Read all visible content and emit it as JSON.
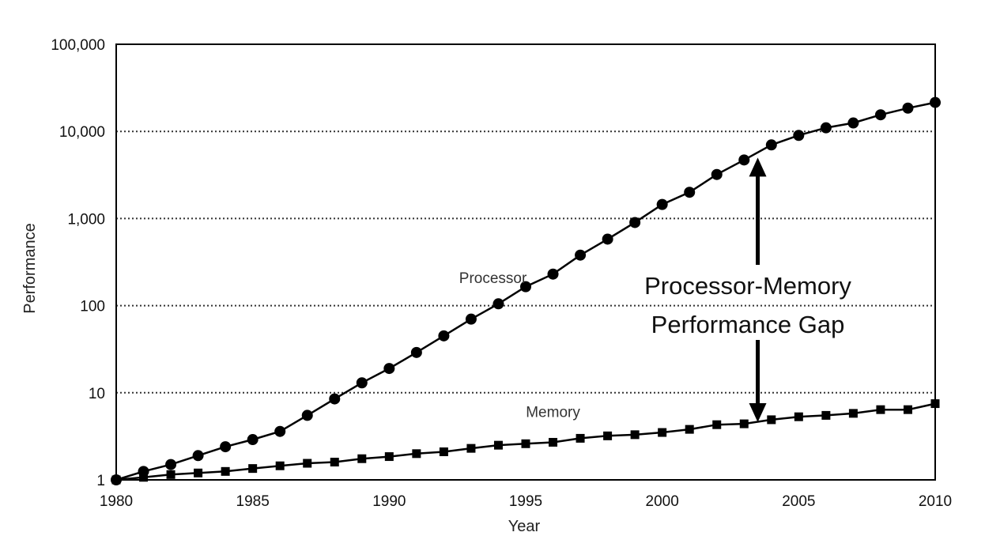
{
  "chart_data": {
    "type": "line",
    "y_scale": "log",
    "xlabel": "Year",
    "ylabel": "Performance",
    "xlim": [
      1980,
      2010
    ],
    "ylim": [
      1,
      100000
    ],
    "x_ticks": [
      "1980",
      "1985",
      "1990",
      "1995",
      "2000",
      "2005",
      "2010"
    ],
    "y_ticks": [
      "1",
      "10",
      "100",
      "1,000",
      "10,000",
      "100,000"
    ],
    "grid": "horizontal dotted at decades",
    "series": [
      {
        "name": "Processor",
        "marker": "circle",
        "x": [
          1980,
          1981,
          1982,
          1983,
          1984,
          1985,
          1986,
          1987,
          1988,
          1989,
          1990,
          1991,
          1992,
          1993,
          1994,
          1995,
          1996,
          1997,
          1998,
          1999,
          2000,
          2001,
          2002,
          2003,
          2004,
          2005,
          2006,
          2007,
          2008,
          2009,
          2010
        ],
        "values": [
          1,
          1.25,
          1.5,
          1.9,
          2.4,
          2.9,
          3.6,
          5.5,
          8.5,
          13,
          19,
          29,
          45,
          70,
          105,
          165,
          230,
          380,
          580,
          900,
          1450,
          2000,
          3200,
          4700,
          7000,
          9000,
          11000,
          12500,
          15500,
          18500,
          21500
        ]
      },
      {
        "name": "Memory",
        "marker": "square",
        "x": [
          1980,
          1981,
          1982,
          1983,
          1984,
          1985,
          1986,
          1987,
          1988,
          1989,
          1990,
          1991,
          1992,
          1993,
          1994,
          1995,
          1996,
          1997,
          1998,
          1999,
          2000,
          2001,
          2002,
          2003,
          2004,
          2005,
          2006,
          2007,
          2008,
          2009,
          2010
        ],
        "values": [
          1,
          1.07,
          1.15,
          1.2,
          1.25,
          1.35,
          1.45,
          1.55,
          1.6,
          1.75,
          1.85,
          2.0,
          2.1,
          2.3,
          2.5,
          2.6,
          2.7,
          3.0,
          3.2,
          3.3,
          3.5,
          3.8,
          4.3,
          4.4,
          4.9,
          5.3,
          5.5,
          5.8,
          6.4,
          6.4,
          7.5
        ]
      }
    ],
    "annotations": {
      "processor_label": "Processor",
      "memory_label": "Memory",
      "gap_line1": "Processor-Memory",
      "gap_line2": "Performance Gap",
      "arrow_year": 2003.5
    }
  }
}
